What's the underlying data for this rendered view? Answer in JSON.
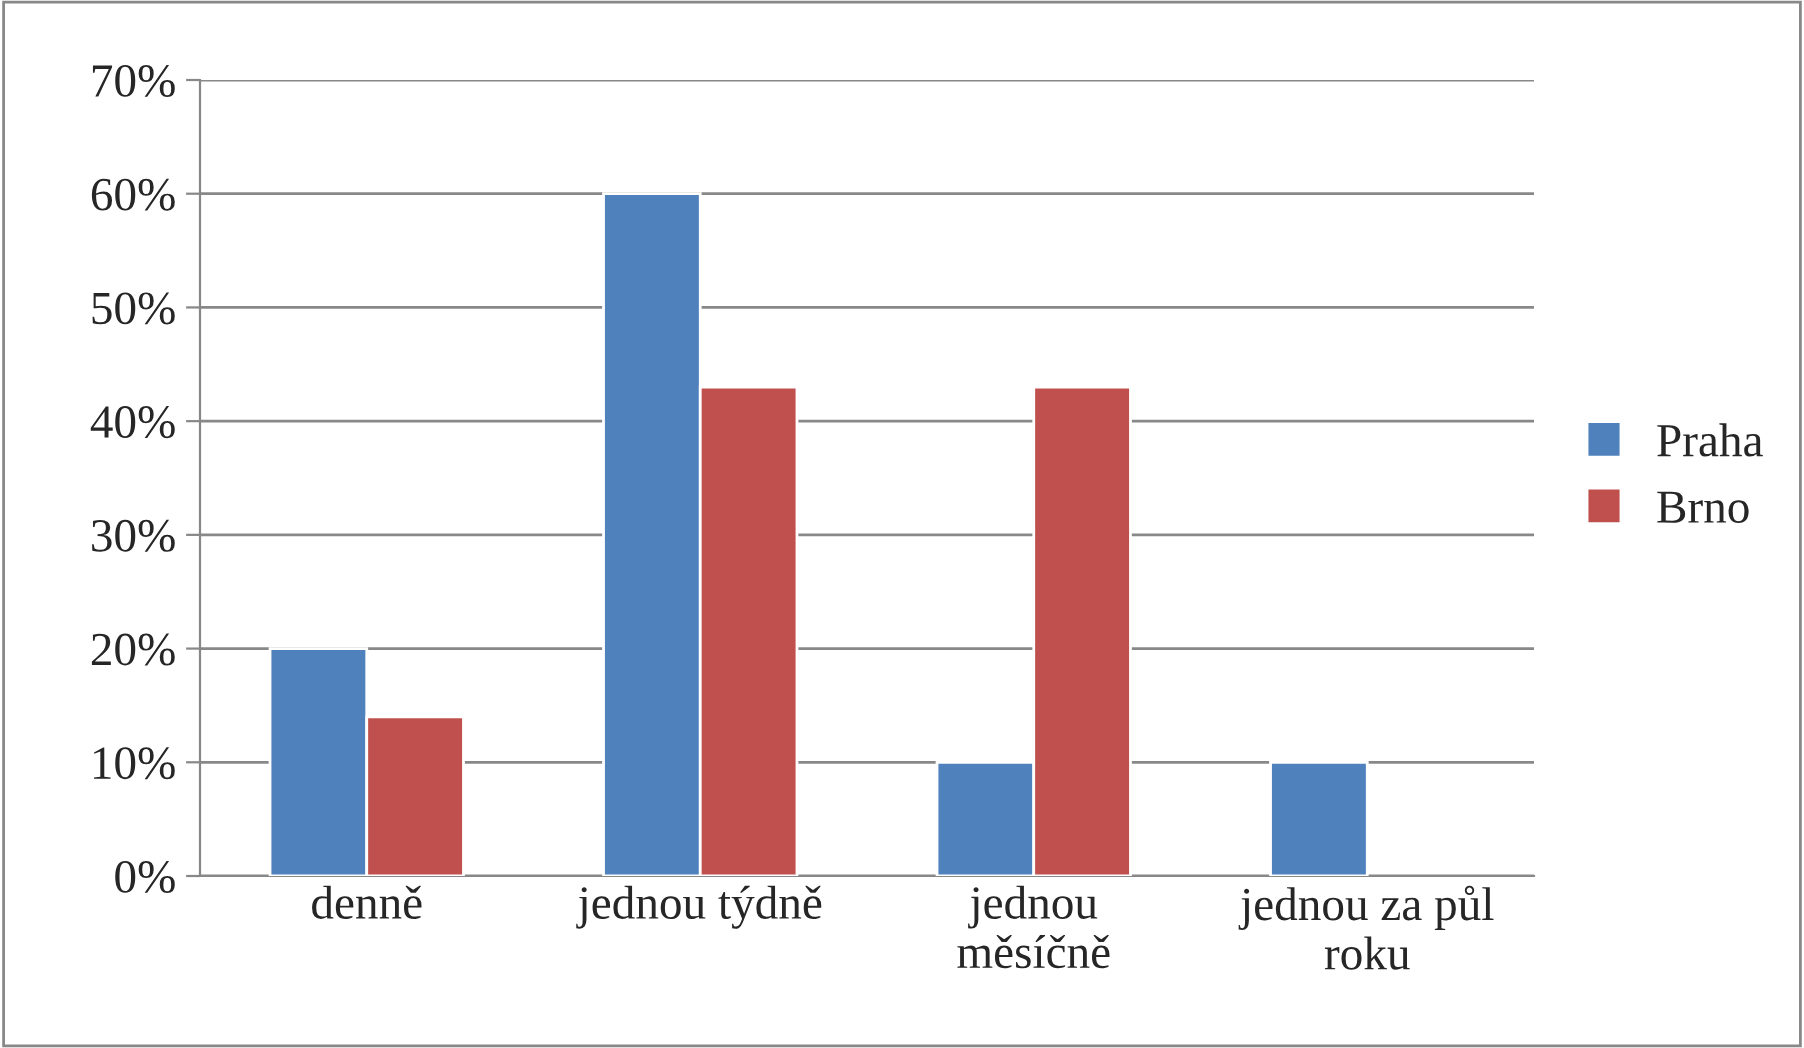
{
  "chart_data": {
    "type": "bar",
    "categories": [
      "denně",
      "jednou týdně",
      "jednou\nměsíčně",
      "jednou za půl\nroku"
    ],
    "series": [
      {
        "name": "Praha",
        "color": "#4f81bd",
        "values": [
          20,
          60,
          10,
          10
        ]
      },
      {
        "name": "Brno",
        "color": "#c0504d",
        "values": [
          14,
          43,
          43,
          null
        ]
      }
    ],
    "ylim": [
      0,
      70
    ],
    "yticks": [
      {
        "value": 0,
        "label": "0%"
      },
      {
        "value": 10,
        "label": "10%"
      },
      {
        "value": 20,
        "label": "20%"
      },
      {
        "value": 30,
        "label": "30%"
      },
      {
        "value": 40,
        "label": "40%"
      },
      {
        "value": 50,
        "label": "50%"
      },
      {
        "value": 60,
        "label": "60%"
      },
      {
        "value": 70,
        "label": "70%"
      }
    ],
    "grid": "y",
    "legend": "right"
  }
}
